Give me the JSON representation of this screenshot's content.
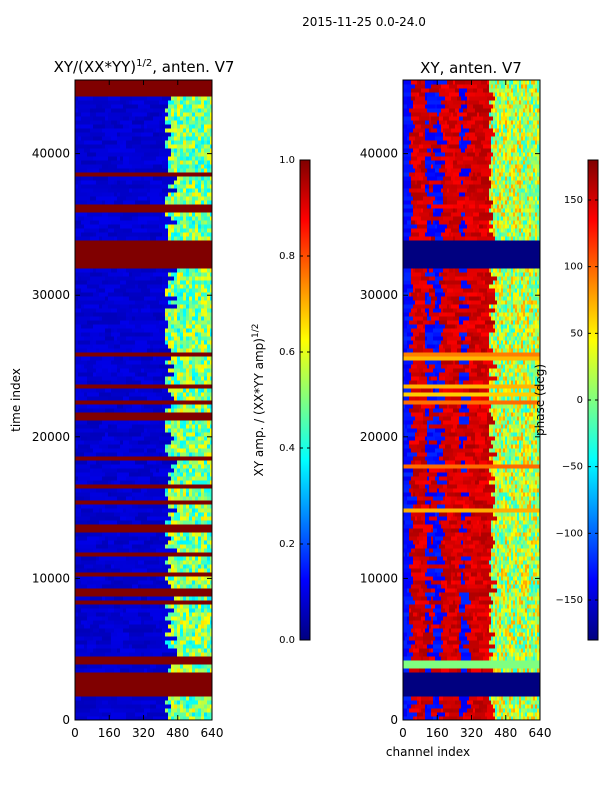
{
  "suptitle": "2015-11-25 0.0-24.0",
  "colors": {
    "jet": [
      "#000080",
      "#0000ff",
      "#0080ff",
      "#00ffff",
      "#80ff80",
      "#ffff00",
      "#ff8000",
      "#ff0000",
      "#800000"
    ],
    "axis": "#000000",
    "background": "#ffffff"
  },
  "chart_data": [
    {
      "type": "heatmap",
      "title_base": "XY/(XX*YY)",
      "title_sup": "1/2",
      "title_suffix": ", anten. V7",
      "xlabel": "",
      "ylabel": "time index",
      "xlim": [
        0,
        640
      ],
      "ylim": [
        0,
        45200
      ],
      "xticks": [
        0,
        160,
        320,
        480,
        640
      ],
      "yticks": [
        0,
        10000,
        20000,
        30000,
        40000
      ],
      "colorbar": {
        "label_base": "XY amp. / (XX*YY amp)",
        "label_sup": "1/2",
        "range": [
          0.0,
          1.0
        ],
        "ticks": [
          0.0,
          0.2,
          0.4,
          0.6,
          0.8,
          1.0
        ],
        "tick_labels": [
          "0.0",
          "0.2",
          "0.4",
          "0.6",
          "0.8",
          "1.0"
        ]
      },
      "background_value": 0.08,
      "active_channel_range": [
        420,
        640
      ],
      "active_value_range": [
        0.35,
        0.65
      ],
      "saturated_blocks": [
        [
          1800,
          3500
        ],
        [
          4100,
          4500
        ],
        [
          31900,
          34000
        ],
        [
          44000,
          45200
        ]
      ],
      "saturated_value": 1.0
    },
    {
      "type": "heatmap",
      "title_base": "XY, anten. V7",
      "xlabel": "channel index",
      "ylabel": "",
      "xlim": [
        0,
        640
      ],
      "ylim": [
        0,
        45200
      ],
      "xticks": [
        0,
        160,
        320,
        480,
        640
      ],
      "yticks": [
        0,
        10000,
        20000,
        30000,
        40000
      ],
      "colorbar": {
        "label": "phase (deg)",
        "range": [
          -180,
          180
        ],
        "ticks": [
          -150,
          -100,
          -50,
          0,
          50,
          100,
          150
        ],
        "tick_labels": [
          "−150",
          "−100",
          "−50",
          "0",
          "50",
          "100",
          "150"
        ]
      },
      "background_value": 150,
      "low_phase_bands": [
        [
          0,
          30
        ],
        [
          100,
          120
        ],
        [
          140,
          165
        ],
        [
          260,
          280
        ]
      ],
      "low_phase_value": -130,
      "active_channel_range": [
        400,
        640
      ],
      "active_value_range": [
        -40,
        80
      ],
      "saturated_blocks": [
        [
          1800,
          3500
        ],
        [
          31900,
          34000
        ]
      ],
      "saturated_value": -180,
      "green_band": [
        3600,
        4100
      ],
      "green_value": 0
    }
  ]
}
